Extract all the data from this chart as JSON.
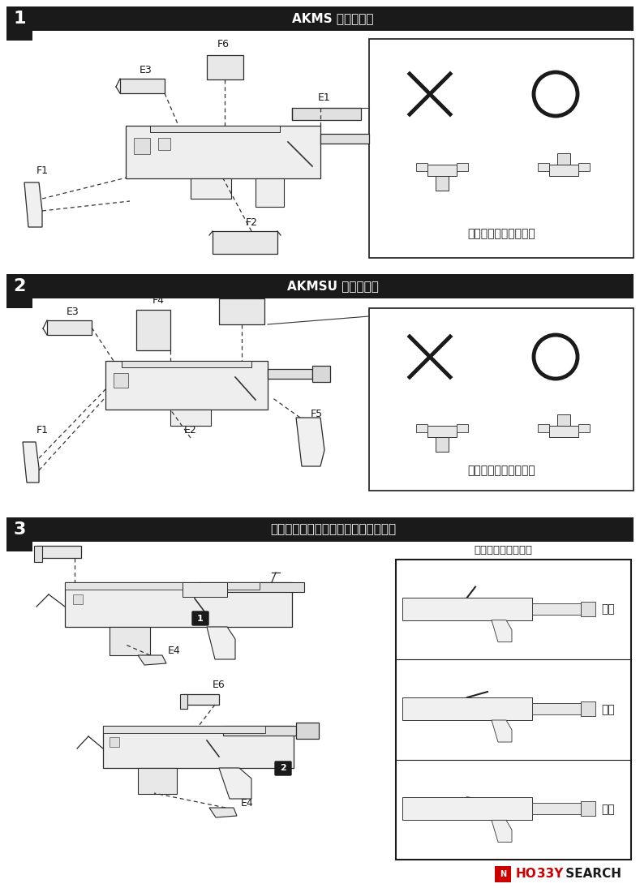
{
  "bg_color": "#ffffff",
  "header1_text": "AKMS の組み立て",
  "header2_text": "AKMSU の組み立て",
  "header3_text": "トップカバー、セレクターの取り付け",
  "header_bg": "#1a1a1a",
  "header_text_color": "#ffffff",
  "warning_text": "取り付け方向に注意！",
  "safety_title": "安全装置位置説明図",
  "safety_label_0": "安全",
  "safety_label_1": "単射",
  "safety_label_2": "連射",
  "dpi": 100,
  "fig_w": 7.89,
  "fig_h": 10.95
}
